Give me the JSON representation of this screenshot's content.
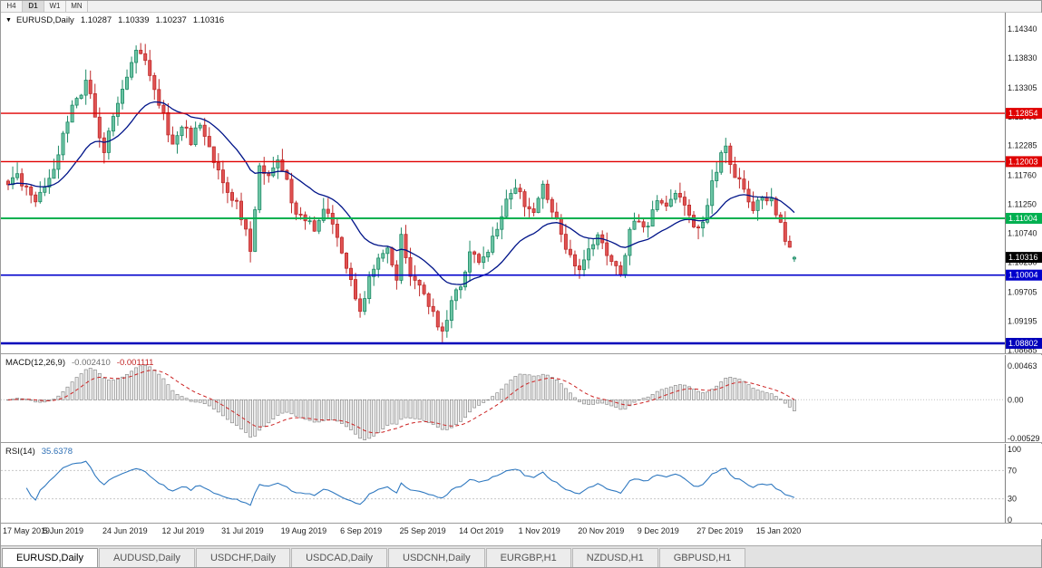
{
  "colors": {
    "up_fill": "#6cc4a4",
    "up_stroke": "#1d8a66",
    "down_fill": "#e05252",
    "down_stroke": "#bf2b2b",
    "ma_line": "#001489",
    "macd_hist_fill": "#ebebeb",
    "macd_hist_stroke": "#7d7d7d",
    "macd_signal": "#cc2222",
    "rsi_line": "#3079c0",
    "level_dotted": "#c8c8c8",
    "axis_separator": "#808080",
    "current_price_bg": "#000000"
  },
  "timeframe_bar": {
    "buttons": [
      "H4",
      "D1",
      "W1",
      "MN"
    ],
    "active": "D1"
  },
  "chart_header": {
    "collapse_icon": "▼",
    "symbol_label": "EURUSD,Daily",
    "open": "1.10287",
    "high": "1.10339",
    "low": "1.10237",
    "close": "1.10316"
  },
  "price_axis": {
    "tick_values": [
      1.1434,
      1.1383,
      1.13305,
      1.1279,
      1.12285,
      1.1176,
      1.1125,
      1.1074,
      1.1023,
      1.09705,
      1.09195,
      1.08685
    ],
    "current_price": "1.10316",
    "current_price_value": 1.10316
  },
  "hlines": [
    {
      "value": 1.12854,
      "label": "1.12854",
      "color": "#e00000",
      "width": 1.4
    },
    {
      "value": 1.12003,
      "label": "1.12003",
      "color": "#e00000",
      "width": 1.4
    },
    {
      "value": 1.11004,
      "label": "1.11004",
      "color": "#00b050",
      "width": 2
    },
    {
      "value": 1.10004,
      "label": "1.10004",
      "color": "#0000cc",
      "width": 1.6
    },
    {
      "value": 1.08802,
      "label": "1.08802",
      "color": "#0000bb",
      "width": 2.6
    }
  ],
  "macd_panel": {
    "label": "MACD(12,26,9)",
    "macd_value": "-0.002410",
    "signal_value": "-0.001111",
    "ticks": [
      {
        "v": 0.00463,
        "label": "0.00463"
      },
      {
        "v": 0,
        "label": "0.00"
      },
      {
        "v": -0.00529,
        "label": "-0.00529"
      }
    ],
    "scale": {
      "top": 0.006118,
      "bottom": -0.00591
    }
  },
  "rsi_panel": {
    "label": "RSI(14)",
    "value": "35.6378",
    "ticks": [
      {
        "v": 100,
        "label": "100"
      },
      {
        "v": 70,
        "label": "70"
      },
      {
        "v": 30,
        "label": "30"
      },
      {
        "v": 0,
        "label": "0"
      }
    ],
    "levels": [
      70,
      30
    ]
  },
  "x_axis": {
    "labels": [
      {
        "text": "17 May 2019",
        "bar": 0
      },
      {
        "text": "5 Jun 2019",
        "bar": 13
      },
      {
        "text": "24 Jun 2019",
        "bar": 26
      },
      {
        "text": "12 Jul 2019",
        "bar": 39
      },
      {
        "text": "31 Jul 2019",
        "bar": 52
      },
      {
        "text": "19 Aug 2019",
        "bar": 65
      },
      {
        "text": "6 Sep 2019",
        "bar": 78
      },
      {
        "text": "25 Sep 2019",
        "bar": 91
      },
      {
        "text": "14 Oct 2019",
        "bar": 104
      },
      {
        "text": "1 Nov 2019",
        "bar": 117
      },
      {
        "text": "20 Nov 2019",
        "bar": 130
      },
      {
        "text": "9 Dec 2019",
        "bar": 143
      },
      {
        "text": "27 Dec 2019",
        "bar": 156
      },
      {
        "text": "15 Jan 2020",
        "bar": 169
      }
    ]
  },
  "tabs": {
    "items": [
      "EURUSD,Daily",
      "AUDUSD,Daily",
      "USDCHF,Daily",
      "USDCAD,Daily",
      "USDCNH,Daily",
      "EURGBP,H1",
      "NZDUSD,H1",
      "GBPUSD,H1"
    ],
    "active": "EURUSD,Daily"
  },
  "chart_data": {
    "type": "candlestick",
    "symbol": "EURUSD",
    "timeframe": "Daily",
    "ohlc_display": {
      "open": 1.10287,
      "high": 1.10339,
      "low": 1.10237,
      "close": 1.10316
    },
    "bar_count": 173,
    "price_range": {
      "min": 1.0861,
      "max": 1.14627
    },
    "moving_average_period": 22,
    "close_anchors": [
      [
        0,
        1.1158
      ],
      [
        2,
        1.1178
      ],
      [
        4,
        1.115
      ],
      [
        6,
        1.1128
      ],
      [
        8,
        1.115
      ],
      [
        10,
        1.118
      ],
      [
        12,
        1.1248
      ],
      [
        14,
        1.1295
      ],
      [
        16,
        1.132
      ],
      [
        17,
        1.134
      ],
      [
        19,
        1.1285
      ],
      [
        21,
        1.1215
      ],
      [
        23,
        1.1278
      ],
      [
        25,
        1.133
      ],
      [
        27,
        1.138
      ],
      [
        28,
        1.1398
      ],
      [
        30,
        1.1375
      ],
      [
        32,
        1.133
      ],
      [
        34,
        1.128
      ],
      [
        36,
        1.1225
      ],
      [
        38,
        1.1268
      ],
      [
        40,
        1.1235
      ],
      [
        42,
        1.127
      ],
      [
        44,
        1.1225
      ],
      [
        46,
        1.1185
      ],
      [
        48,
        1.1152
      ],
      [
        50,
        1.1125
      ],
      [
        52,
        1.1078
      ],
      [
        53,
        1.104
      ],
      [
        54,
        1.1108
      ],
      [
        55,
        1.1195
      ],
      [
        57,
        1.1178
      ],
      [
        59,
        1.1205
      ],
      [
        61,
        1.1165
      ],
      [
        63,
        1.1105
      ],
      [
        65,
        1.1098
      ],
      [
        67,
        1.1082
      ],
      [
        69,
        1.112
      ],
      [
        71,
        1.1098
      ],
      [
        73,
        1.1042
      ],
      [
        75,
        1.0992
      ],
      [
        77,
        1.093
      ],
      [
        79,
        1.1
      ],
      [
        81,
        1.1035
      ],
      [
        83,
        1.1048
      ],
      [
        85,
        1.0995
      ],
      [
        86,
        1.1068
      ],
      [
        88,
        1.1005
      ],
      [
        90,
        1.0982
      ],
      [
        92,
        1.0945
      ],
      [
        94,
        1.0912
      ],
      [
        95,
        1.0895
      ],
      [
        97,
        1.0958
      ],
      [
        99,
        1.0985
      ],
      [
        101,
        1.104
      ],
      [
        103,
        1.1028
      ],
      [
        105,
        1.1048
      ],
      [
        107,
        1.1075
      ],
      [
        109,
        1.1138
      ],
      [
        111,
        1.1152
      ],
      [
        113,
        1.1128
      ],
      [
        115,
        1.1105
      ],
      [
        117,
        1.1162
      ],
      [
        119,
        1.1118
      ],
      [
        121,
        1.1068
      ],
      [
        123,
        1.1032
      ],
      [
        125,
        1.1012
      ],
      [
        127,
        1.1052
      ],
      [
        129,
        1.1068
      ],
      [
        131,
        1.1038
      ],
      [
        133,
        1.1012
      ],
      [
        134,
        1.1
      ],
      [
        136,
        1.1078
      ],
      [
        138,
        1.1098
      ],
      [
        140,
        1.1088
      ],
      [
        142,
        1.1128
      ],
      [
        144,
        1.1118
      ],
      [
        146,
        1.1148
      ],
      [
        148,
        1.1118
      ],
      [
        150,
        1.1082
      ],
      [
        152,
        1.1095
      ],
      [
        154,
        1.1162
      ],
      [
        156,
        1.1212
      ],
      [
        157,
        1.1222
      ],
      [
        159,
        1.1172
      ],
      [
        161,
        1.1158
      ],
      [
        163,
        1.1112
      ],
      [
        165,
        1.114
      ],
      [
        167,
        1.1128
      ],
      [
        169,
        1.1092
      ],
      [
        170,
        1.1062
      ],
      [
        171,
        1.1045
      ],
      [
        172,
        1.1032
      ]
    ],
    "indicators": [
      {
        "name": "MACD",
        "params": [
          12,
          26,
          9
        ],
        "last_values": [
          -0.00241,
          -0.001111
        ]
      },
      {
        "name": "RSI",
        "params": [
          14
        ],
        "last_value": 35.6378
      }
    ]
  }
}
